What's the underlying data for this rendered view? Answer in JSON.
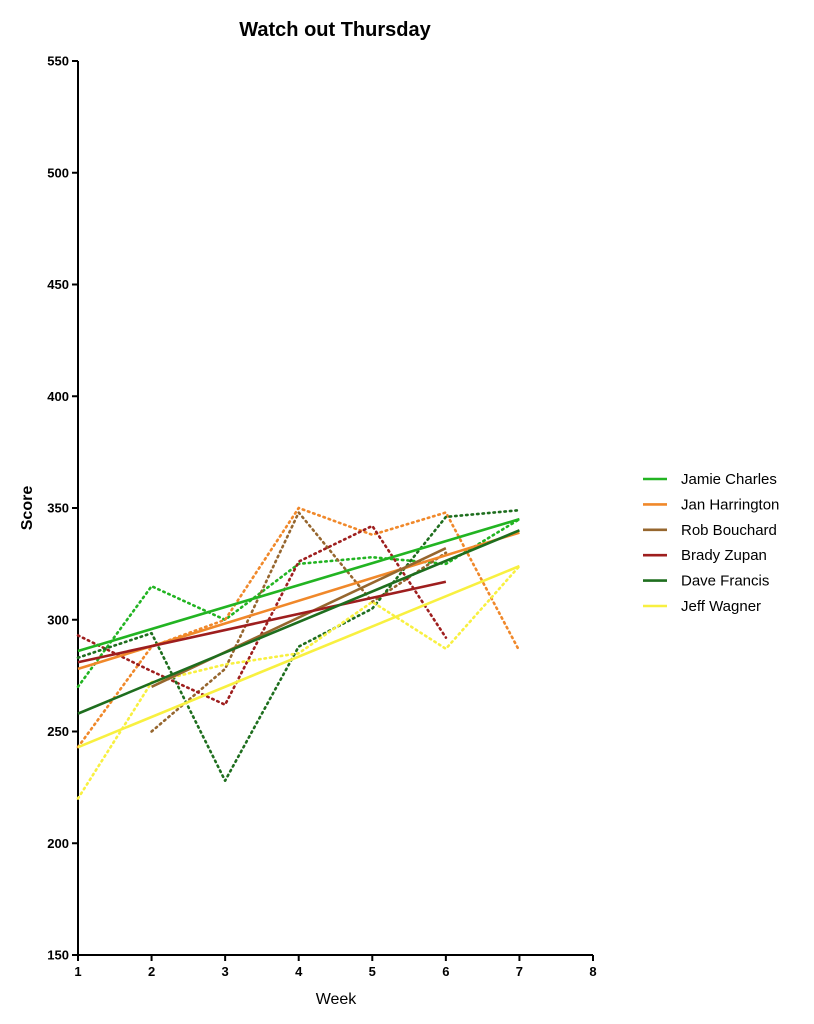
{
  "chart_data": {
    "type": "line",
    "title": "Watch out Thursday",
    "xlabel": "Week",
    "ylabel": "Score",
    "xlim": [
      1,
      8
    ],
    "ylim": [
      150,
      550
    ],
    "x_ticks": [
      "1",
      "2",
      "3",
      "4",
      "5",
      "6",
      "7",
      "8"
    ],
    "y_ticks": [
      "150",
      "200",
      "250",
      "300",
      "350",
      "400",
      "450",
      "500",
      "550"
    ],
    "grid": false,
    "legend_position": "right",
    "series": [
      {
        "name": "Jamie Charles",
        "color": "#22b422",
        "x": [
          1,
          2,
          3,
          4,
          5,
          6,
          7
        ],
        "values": [
          270,
          315,
          300,
          325,
          328,
          325,
          345
        ],
        "trend": [
          [
            1,
            286
          ],
          [
            7,
            345
          ]
        ]
      },
      {
        "name": "Jan Harrington",
        "color": "#f0882a",
        "x": [
          1,
          2,
          3,
          4,
          5,
          6,
          7
        ],
        "values": [
          243,
          288,
          300,
          350,
          338,
          348,
          286
        ],
        "trend": [
          [
            1,
            278
          ],
          [
            7,
            339
          ]
        ]
      },
      {
        "name": "Rob Bouchard",
        "color": "#96662e",
        "x": [
          2,
          3,
          4,
          5,
          6
        ],
        "values": [
          250,
          278,
          348,
          308,
          330
        ],
        "trend": [
          [
            2,
            270
          ],
          [
            6,
            332
          ]
        ]
      },
      {
        "name": "Brady Zupan",
        "color": "#9e1e1e",
        "x": [
          1,
          2,
          3,
          4,
          5,
          6
        ],
        "values": [
          293,
          277,
          262,
          326,
          342,
          292
        ],
        "trend": [
          [
            1,
            281
          ],
          [
            6,
            317
          ]
        ]
      },
      {
        "name": "Dave Francis",
        "color": "#1e6e1e",
        "x": [
          1,
          2,
          3,
          4,
          5,
          6,
          7
        ],
        "values": [
          283,
          294,
          228,
          288,
          305,
          346,
          349
        ],
        "trend": [
          [
            1,
            258
          ],
          [
            7,
            340
          ]
        ]
      },
      {
        "name": "Jeff Wagner",
        "color": "#f8f040",
        "x": [
          1,
          2,
          3,
          4,
          5,
          6,
          7
        ],
        "values": [
          220,
          272,
          280,
          285,
          308,
          287,
          324
        ],
        "trend": [
          [
            1,
            243
          ],
          [
            7,
            324
          ]
        ]
      }
    ]
  }
}
